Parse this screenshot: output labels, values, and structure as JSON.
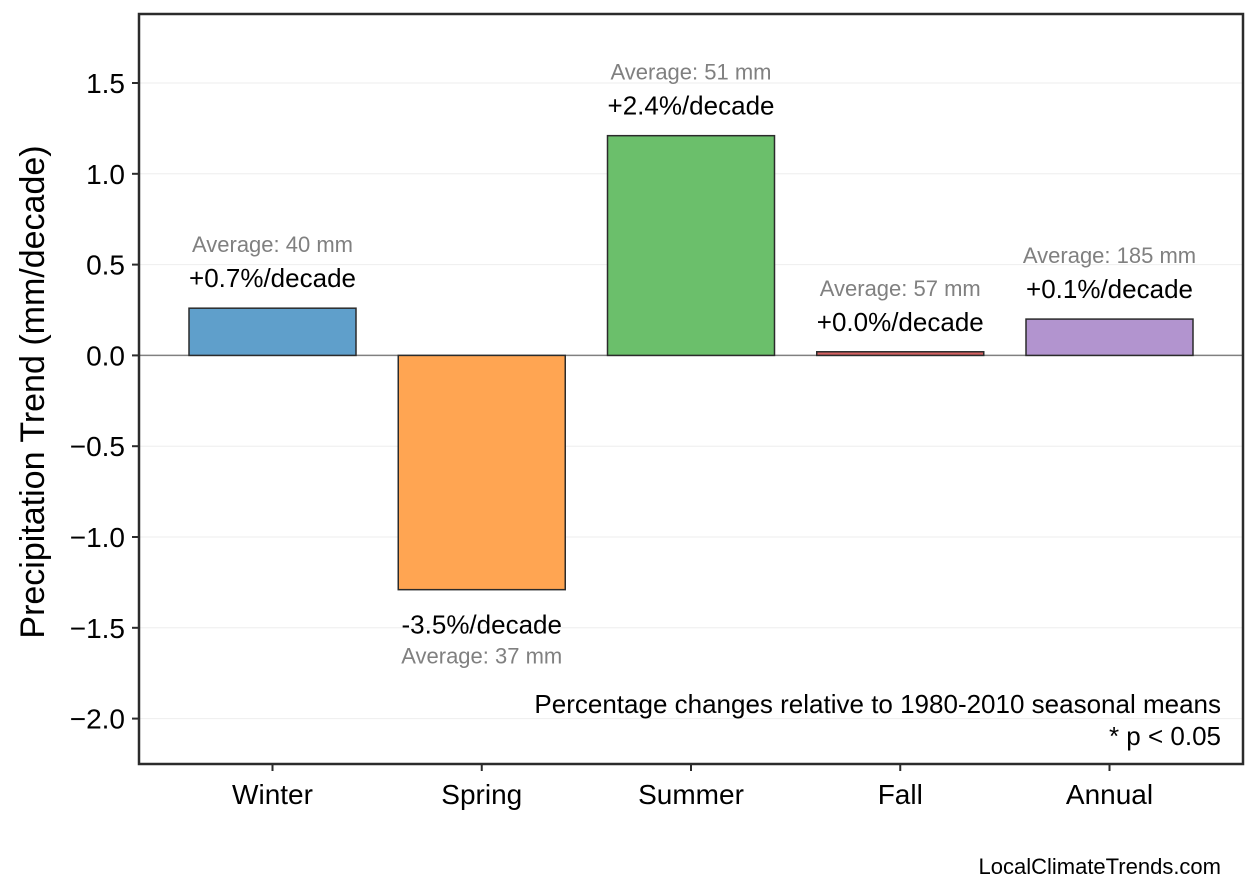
{
  "chart_data": {
    "type": "bar",
    "categories": [
      "Winter",
      "Spring",
      "Summer",
      "Fall",
      "Annual"
    ],
    "values": [
      0.26,
      -1.29,
      1.21,
      0.02,
      0.2
    ],
    "pct_labels": [
      "+0.7%/decade",
      "-3.5%/decade",
      "+2.4%/decade",
      "+0.0%/decade",
      "+0.1%/decade"
    ],
    "avg_labels": [
      "Average: 40 mm",
      "Average: 37 mm",
      "Average: 51 mm",
      "Average: 57 mm",
      "Average: 185 mm"
    ],
    "colors": [
      "#5f9fcb",
      "#ffa552",
      "#6bbf6b",
      "#d56262",
      "#b294cf"
    ],
    "ylabel": "Precipitation Trend (mm/decade)",
    "ylim": [
      -2.25,
      1.88
    ],
    "yticks": [
      1.5,
      1.0,
      0.5,
      0.0,
      -0.5,
      -1.0,
      -1.5,
      -2.0
    ],
    "ytick_labels": [
      "1.5",
      "1.0",
      "0.5",
      "0.0",
      "−0.5",
      "−1.0",
      "−1.5",
      "−2.0"
    ],
    "grid": true
  },
  "notes": {
    "line1": "Percentage changes relative to 1980-2010 seasonal means",
    "line2": "* p < 0.05"
  },
  "credit": "LocalClimateTrends.com"
}
